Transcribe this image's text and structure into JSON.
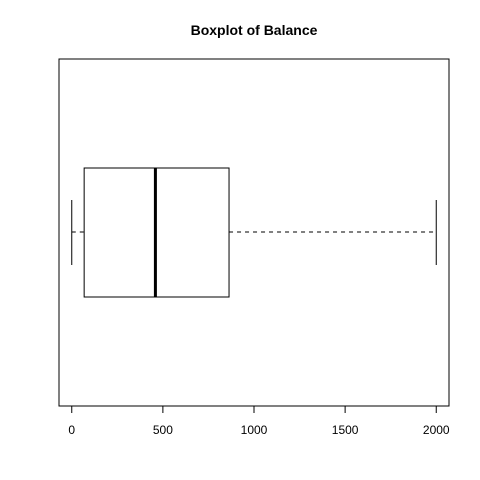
{
  "chart_data": {
    "type": "boxplot",
    "orientation": "horizontal",
    "title": "Boxplot of Balance",
    "xlabel": "",
    "ylabel": "",
    "xlim": [
      -70,
      2070
    ],
    "x_ticks": [
      0,
      500,
      1000,
      1500,
      2000
    ],
    "x_tick_labels": [
      "0",
      "500",
      "1000",
      "1500",
      "2000"
    ],
    "box": {
      "min": 0,
      "q1": 68,
      "median": 459,
      "q3": 863,
      "max": 2000
    },
    "whisker_style": "dashed",
    "grid": false,
    "legend": "none"
  }
}
